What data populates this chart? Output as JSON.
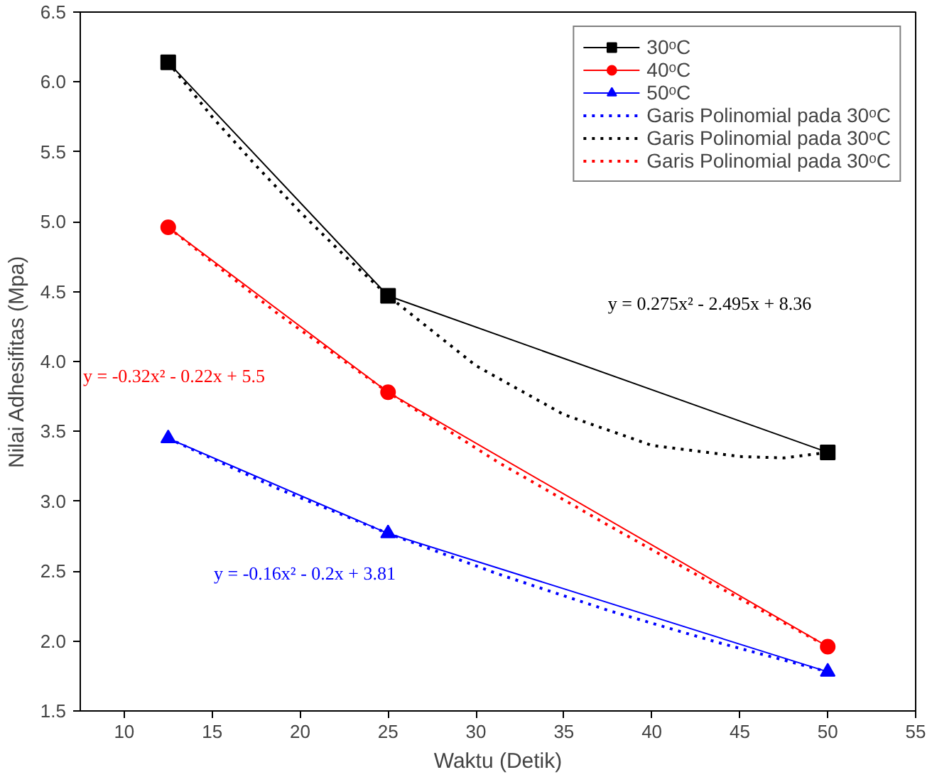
{
  "chart_data": {
    "type": "line",
    "xlabel": "Waktu (Detik)",
    "ylabel": "Nilai Adhesifitas (Mpa)",
    "xlim": [
      7.5,
      55
    ],
    "xticks": [
      10,
      15,
      20,
      25,
      30,
      35,
      40,
      45,
      50,
      55
    ],
    "ylim": [
      1.5,
      6.5
    ],
    "yticks": [
      1.5,
      {
        "value": 2,
        "label": "2.0"
      },
      2.5,
      {
        "value": 3,
        "label": "3.0"
      },
      3.5,
      {
        "value": 4,
        "label": "4.0"
      },
      4.5,
      {
        "value": 5,
        "label": "5.0"
      },
      5.5,
      {
        "value": 6,
        "label": "6.0"
      },
      6.5
    ],
    "grid": false,
    "legend": "top right",
    "series": [
      {
        "name": "30ᵒC",
        "color": "#000000",
        "marker": "square",
        "line_style": "solid",
        "x": [
          12.5,
          25,
          50
        ],
        "values": [
          6.14,
          4.47,
          3.35
        ]
      },
      {
        "name": "40ᵒC",
        "color": "#ff0000",
        "marker": "circle",
        "line_style": "solid",
        "x": [
          12.5,
          25,
          50
        ],
        "values": [
          4.96,
          3.78,
          1.96
        ]
      },
      {
        "name": "50ᵒC",
        "color": "#0000ff",
        "marker": "triangle",
        "line_style": "solid",
        "x": [
          12.5,
          25,
          50
        ],
        "values": [
          3.45,
          2.77,
          1.78
        ]
      },
      {
        "name": "Garis Polinomial pada 30ᵒC",
        "color": "#0000ff",
        "marker": "none",
        "line_style": "dotted",
        "x": [
          12.5,
          18.75,
          25,
          31.25,
          37.5,
          43.75,
          50
        ],
        "values": [
          3.45,
          3.09,
          2.77,
          2.48,
          2.22,
          1.99,
          1.78
        ]
      },
      {
        "name": "Garis Polinomial pada 30ᵒC",
        "color": "#000000",
        "marker": "none",
        "line_style": "dotted",
        "x": [
          12.5,
          15,
          17.5,
          20,
          22.5,
          25,
          30,
          35,
          40,
          45,
          47.5,
          50
        ],
        "values": [
          6.14,
          5.75,
          5.4,
          5.07,
          4.76,
          4.47,
          3.97,
          3.62,
          3.4,
          3.32,
          3.31,
          3.35
        ]
      },
      {
        "name": "Garis Polinomial pada 30ᵒC",
        "color": "#ff0000",
        "marker": "none",
        "line_style": "dotted",
        "x": [
          12.5,
          18.75,
          25,
          31.25,
          37.5,
          43.75,
          50
        ],
        "values": [
          4.96,
          4.34,
          3.78,
          3.28,
          2.83,
          2.39,
          1.96
        ]
      }
    ],
    "annotations": [
      "y = 0.275x² - 2.495x + 8.36",
      "y = -0.32x² - 0.22x + 5.5",
      "y = -0.16x² - 0.2x + 3.81"
    ]
  }
}
